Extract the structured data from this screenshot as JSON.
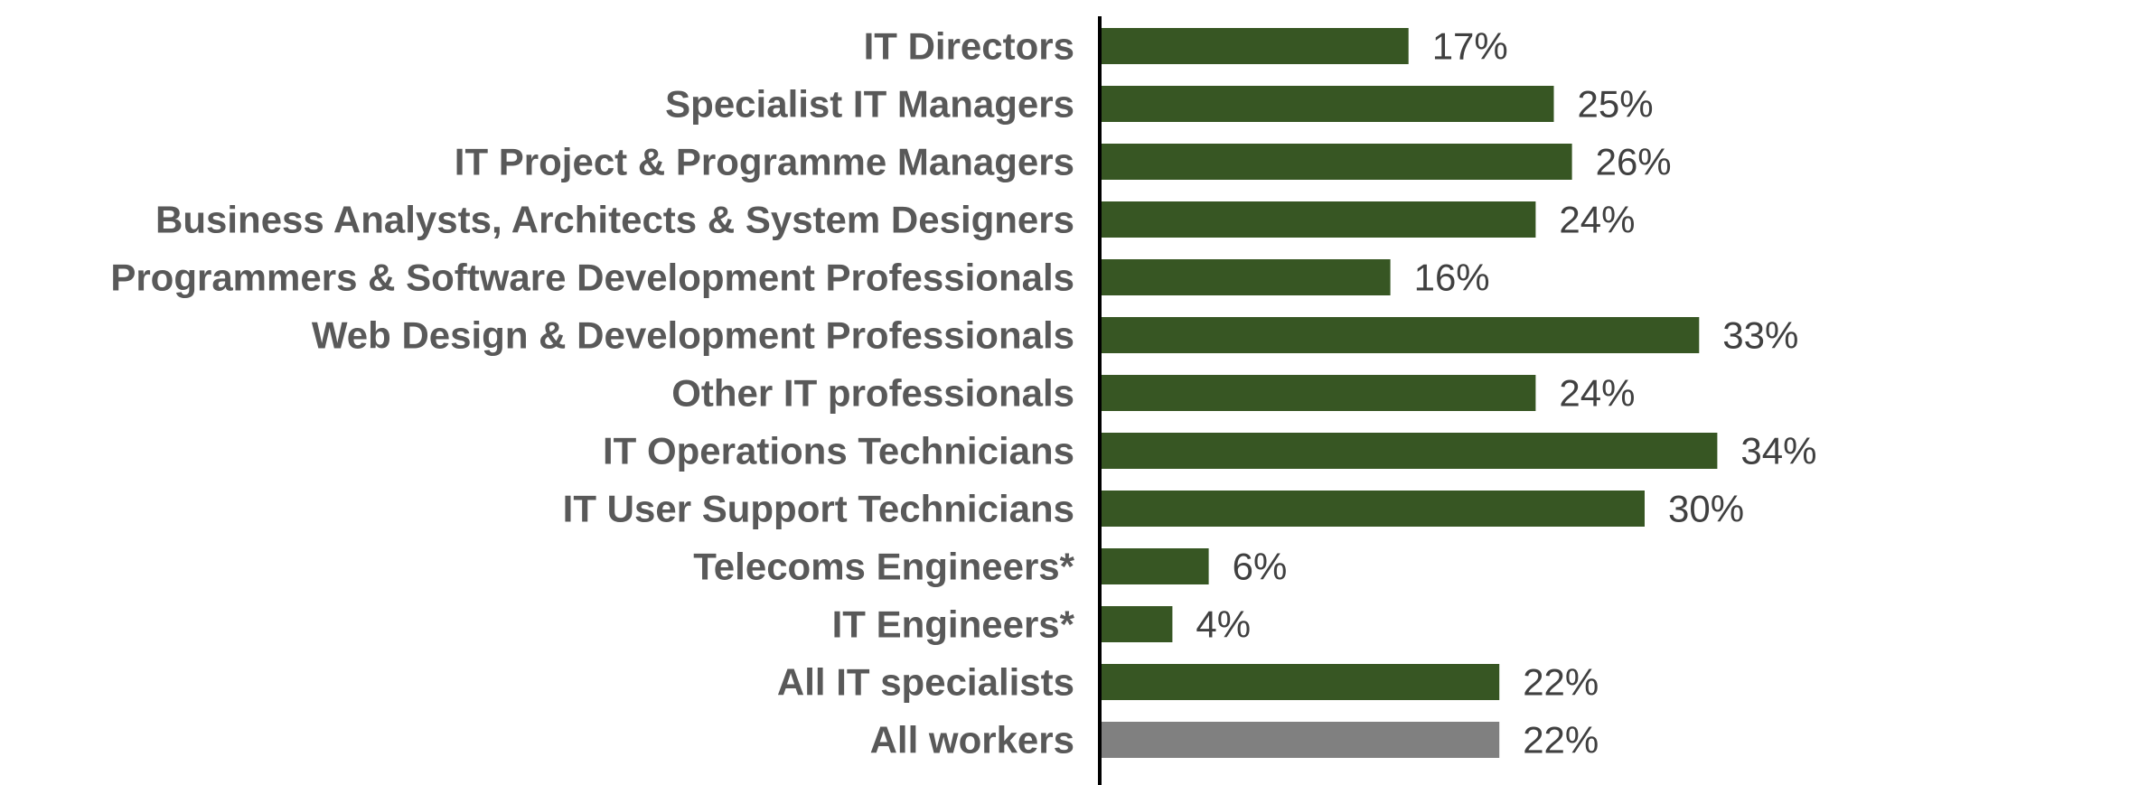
{
  "chart_data": {
    "type": "bar",
    "orientation": "horizontal",
    "categories": [
      "IT Directors",
      "Specialist IT Managers",
      "IT Project & Programme Managers",
      "Business Analysts, Architects & System Designers",
      "Programmers & Software Development Professionals",
      "Web Design & Development Professionals",
      "Other IT professionals",
      "IT Operations Technicians",
      "IT User Support Technicians",
      "Telecoms Engineers*",
      "IT Engineers*",
      "All IT specialists",
      "All workers"
    ],
    "values": [
      17,
      25,
      26,
      24,
      16,
      33,
      24,
      34,
      30,
      6,
      4,
      22,
      22
    ],
    "value_labels": [
      "17%",
      "25%",
      "26%",
      "24%",
      "16%",
      "33%",
      "24%",
      "34%",
      "30%",
      "6%",
      "4%",
      "22%",
      "22%"
    ],
    "bar_colors": [
      "#375623",
      "#375623",
      "#375623",
      "#375623",
      "#375623",
      "#375623",
      "#375623",
      "#375623",
      "#375623",
      "#375623",
      "#375623",
      "#375623",
      "#808080"
    ],
    "title": "",
    "xlabel": "",
    "ylabel": "",
    "xlim": [
      0,
      34
    ],
    "grid": false,
    "legend": "none",
    "unit": "%"
  }
}
